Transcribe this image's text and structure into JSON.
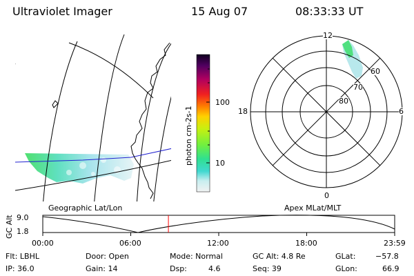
{
  "header": {
    "title": "Ultraviolet Imager",
    "date": "15 Aug 07",
    "time": "08:33:33 UT"
  },
  "panels": {
    "left_caption": "Geographic Lat/Lon",
    "right_caption": "Apex MLat/MLT"
  },
  "colorbar": {
    "unit_label": "photon cm-2s-1",
    "tick_100": "100",
    "tick_10": "10"
  },
  "polar": {
    "mlt_12": "12",
    "mlt_18": "18",
    "mlt_6": "6",
    "mlt_0": "0",
    "lat_60": "60",
    "lat_70": "70",
    "lat_80": "80"
  },
  "timeline": {
    "axis_label": "GC Alt",
    "y_top": "9.0",
    "y_bottom": "1.8",
    "ticks": [
      "00:00",
      "06:00",
      "12:00",
      "18:00",
      "23:59"
    ],
    "current_time_fraction": 0.357
  },
  "footer": {
    "col1": [
      "Flt: LBHL",
      "IP: 36.0"
    ],
    "col2": [
      "Door: Open",
      "Gain: 14"
    ],
    "col3a": [
      "Mode: Normal",
      "Dsp:"
    ],
    "dsp_value": "4.6",
    "col4": [
      "GC Alt: 4.8 Re",
      "Seq: 39"
    ],
    "glat_label": "GLat:",
    "glat_value": "−57.8",
    "glon_label": "GLon:",
    "glon_value": "66.9"
  },
  "colors": {
    "map_line": "#000000",
    "equator_line": "#2020d0",
    "time_marker": "#ff0000"
  }
}
